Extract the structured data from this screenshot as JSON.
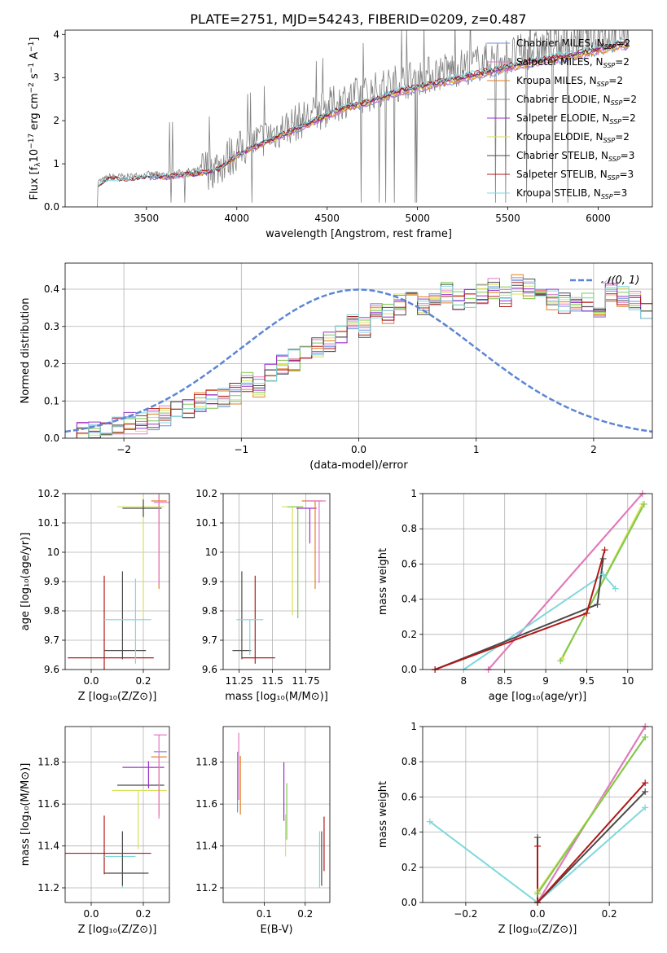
{
  "figure": {
    "title": "PLATE=2751, MJD=54243, FIBERID=0209, z=0.487"
  },
  "colors": {
    "cMILES": "#6f8fe0",
    "sMILES": "#e07ac8",
    "kMILES": "#e67e22",
    "cELODIE": "#8a8a8a",
    "sELODIE": "#9b30c8",
    "kELODIE": "#d9e05a",
    "cSTELIB": "#4a4a4a",
    "sSTELIB": "#b01818",
    "kSTELIB": "#7fd8dc",
    "green": "#7ec850",
    "gauss": "#5b85d6"
  },
  "legend_spectrum": [
    {
      "key": "cMILES",
      "label": "Chabrier MILES, N",
      "sub": "SSP",
      "tail": "=2"
    },
    {
      "key": "sMILES",
      "label": "Salpeter MILES, N",
      "sub": "SSP",
      "tail": "=2"
    },
    {
      "key": "kMILES",
      "label": "Kroupa MILES, N",
      "sub": "SSP",
      "tail": "=2"
    },
    {
      "key": "cELODIE",
      "label": "Chabrier ELODIE, N",
      "sub": "SSP",
      "tail": "=2"
    },
    {
      "key": "sELODIE",
      "label": "Salpeter ELODIE, N",
      "sub": "SSP",
      "tail": "=2"
    },
    {
      "key": "kELODIE",
      "label": "Kroupa ELODIE, N",
      "sub": "SSP",
      "tail": "=2"
    },
    {
      "key": "cSTELIB",
      "label": "Chabrier STELIB, N",
      "sub": "SSP",
      "tail": "=3"
    },
    {
      "key": "sSTELIB",
      "label": "Salpeter STELIB, N",
      "sub": "SSP",
      "tail": "=3"
    },
    {
      "key": "kSTELIB",
      "label": "Kroupa STELIB, N",
      "sub": "SSP",
      "tail": "=3"
    }
  ],
  "legend_hist": {
    "label": "𝒩(0, 1)"
  },
  "chart_data": [
    {
      "id": "spectrum",
      "type": "line",
      "xlabel": "wavelength [Angstrom, rest frame]",
      "ylabel_parts": [
        "Flux [f",
        "λ",
        "10",
        "−17",
        " erg cm",
        "−2",
        " s",
        "−1",
        " A",
        "−1",
        "]"
      ],
      "xlim": [
        3050,
        6300
      ],
      "ylim": [
        0,
        4.1
      ],
      "xticks": [
        3500,
        4000,
        4500,
        5000,
        5500,
        6000
      ],
      "yticks": [
        0,
        1,
        2,
        3,
        4
      ],
      "continuum": [
        [
          3220,
          0.55
        ],
        [
          3300,
          0.7
        ],
        [
          3400,
          0.7
        ],
        [
          3500,
          0.75
        ],
        [
          3600,
          0.75
        ],
        [
          3700,
          0.8
        ],
        [
          3800,
          0.85
        ],
        [
          3900,
          0.95
        ],
        [
          4000,
          1.3
        ],
        [
          4100,
          1.5
        ],
        [
          4200,
          1.7
        ],
        [
          4300,
          1.9
        ],
        [
          4400,
          2.1
        ],
        [
          4500,
          2.3
        ],
        [
          4600,
          2.5
        ],
        [
          4700,
          2.6
        ],
        [
          4800,
          2.75
        ],
        [
          4900,
          2.9
        ],
        [
          5000,
          3.0
        ],
        [
          5100,
          3.1
        ],
        [
          5200,
          3.2
        ],
        [
          5300,
          3.3
        ],
        [
          5400,
          3.4
        ],
        [
          5500,
          3.5
        ],
        [
          5600,
          3.6
        ],
        [
          5700,
          3.7
        ],
        [
          5800,
          3.75
        ],
        [
          5900,
          3.85
        ],
        [
          6000,
          3.95
        ],
        [
          6100,
          4.05
        ],
        [
          6170,
          4.1
        ]
      ]
    },
    {
      "id": "residual_hist",
      "type": "histogram",
      "xlabel": "(data-model)/error",
      "ylabel": "Normed distribution",
      "xlim": [
        -2.5,
        2.5
      ],
      "ylim": [
        0,
        0.47
      ],
      "xticks": [
        -2,
        -1,
        0,
        1,
        2
      ],
      "yticks": [
        0.0,
        0.1,
        0.2,
        0.3,
        0.4
      ],
      "bin_width": 0.1,
      "bin_start": -2.5,
      "base": [
        0.02,
        0.02,
        0.02,
        0.03,
        0.03,
        0.04,
        0.04,
        0.05,
        0.06,
        0.07,
        0.08,
        0.1,
        0.1,
        0.11,
        0.12,
        0.15,
        0.14,
        0.17,
        0.2,
        0.21,
        0.22,
        0.24,
        0.26,
        0.28,
        0.31,
        0.3,
        0.34,
        0.33,
        0.36,
        0.37,
        0.36,
        0.38,
        0.39,
        0.37,
        0.38,
        0.39,
        0.4,
        0.38,
        0.41,
        0.4,
        0.39,
        0.37,
        0.36,
        0.35,
        0.36,
        0.34,
        0.39,
        0.38,
        0.37,
        0.34,
        0.35,
        0.32,
        0.33,
        0.3,
        0.31,
        0.27,
        0.28,
        0.25,
        0.24,
        0.22,
        0.2,
        0.21,
        0.19,
        0.17,
        0.16,
        0.15,
        0.13,
        0.12,
        0.11,
        0.1,
        0.09,
        0.08,
        0.07,
        0.06,
        0.05,
        0.05,
        0.04,
        0.04,
        0.03,
        0.03
      ]
    },
    {
      "id": "age_vs_Z",
      "type": "errorbar",
      "xlabel": "Z [log₁₀(Z/Z⊙)]",
      "ylabel": "age  [log₁₀(age/yr)]",
      "xlim": [
        -0.1,
        0.3
      ],
      "ylim": [
        9.6,
        10.2
      ],
      "xticks": [
        0.0,
        0.2
      ],
      "yticks": [
        9.6,
        9.7,
        9.8,
        9.9,
        10.0,
        10.1,
        10.2
      ],
      "points": [
        {
          "key": "sSTELIB",
          "x": 0.05,
          "xerr": [
            0.14,
            0.19
          ],
          "y": 9.64,
          "yerr": [
            0.04,
            0.28
          ]
        },
        {
          "key": "cSTELIB",
          "x": 0.12,
          "xerr": [
            0.07,
            0.09
          ],
          "y": 9.665,
          "yerr": [
            0.03,
            0.27
          ]
        },
        {
          "key": "kSTELIB",
          "x": 0.17,
          "xerr": [
            0.12,
            0.06
          ],
          "y": 9.77,
          "yerr": [
            0.15,
            0.14
          ]
        },
        {
          "key": "kMILES",
          "x": 0.26,
          "xerr": [
            0.03,
            0.03
          ],
          "y": 10.175,
          "yerr": [
            0.3,
            0.02
          ]
        },
        {
          "key": "kELODIE",
          "x": 0.2,
          "xerr": [
            0.1,
            0.08
          ],
          "y": 10.155,
          "yerr": [
            0.38,
            0.04
          ]
        },
        {
          "key": "cSTELIB",
          "x": 0.2,
          "xerr": [
            0.08,
            0.07
          ],
          "y": 10.15,
          "yerr": [
            0.03,
            0.03
          ]
        },
        {
          "key": "sMILES",
          "x": 0.26,
          "xerr": [
            0.02,
            0.04
          ],
          "y": 10.17,
          "yerr": [
            0.28,
            0.03
          ]
        }
      ]
    },
    {
      "id": "age_vs_mass",
      "type": "errorbar",
      "xlabel": "mass [log₁₀(M/M⊙)]",
      "xlim": [
        11.13,
        11.93
      ],
      "ylim": [
        9.6,
        10.2
      ],
      "xticks": [
        11.25,
        11.5,
        11.75
      ],
      "yticks": [
        9.6,
        9.7,
        9.8,
        9.9,
        10.0,
        10.1,
        10.2
      ],
      "points": [
        {
          "key": "sSTELIB",
          "x": 11.37,
          "xerr": [
            0.1,
            0.15
          ],
          "y": 9.64,
          "yerr": [
            0.02,
            0.28
          ]
        },
        {
          "key": "cSTELIB",
          "x": 11.27,
          "xerr": [
            0.07,
            0.07
          ],
          "y": 9.665,
          "yerr": [
            0.03,
            0.27
          ]
        },
        {
          "key": "kSTELIB",
          "x": 11.33,
          "xerr": [
            0.1,
            0.1
          ],
          "y": 9.77,
          "yerr": [
            0.12,
            0.0
          ]
        },
        {
          "key": "kELODIE",
          "x": 11.65,
          "xerr": [
            0.08,
            0.08
          ],
          "y": 10.155,
          "yerr": [
            0.37,
            0.0
          ]
        },
        {
          "key": "green",
          "x": 11.69,
          "xerr": [
            0.08,
            0.04
          ],
          "y": 10.155,
          "yerr": [
            0.38,
            0.0
          ]
        },
        {
          "key": "sELODIE",
          "x": 11.78,
          "xerr": [
            0.1,
            0.05
          ],
          "y": 10.15,
          "yerr": [
            0.12,
            0.0
          ]
        },
        {
          "key": "kMILES",
          "x": 11.82,
          "xerr": [
            0.1,
            0.05
          ],
          "y": 10.175,
          "yerr": [
            0.3,
            0.0
          ]
        },
        {
          "key": "sMILES",
          "x": 11.85,
          "xerr": [
            0.1,
            0.05
          ],
          "y": 10.175,
          "yerr": [
            0.28,
            0.0
          ]
        }
      ]
    },
    {
      "id": "weight_vs_age",
      "type": "line",
      "xlabel": "age  [log₁₀(age/yr)]",
      "ylabel": "mass weight",
      "xlim": [
        7.5,
        10.3
      ],
      "ylim": [
        0,
        1.0
      ],
      "xticks": [
        8.0,
        8.5,
        9.0,
        9.5,
        10.0
      ],
      "yticks": [
        0.0,
        0.2,
        0.4,
        0.6,
        0.8,
        1.0
      ],
      "series": [
        {
          "key": "kMILES",
          "x": [
            8.3,
            10.18
          ],
          "y": [
            0.0,
            1.0
          ]
        },
        {
          "key": "sMILES",
          "x": [
            8.3,
            10.18
          ],
          "y": [
            0.0,
            1.0
          ]
        },
        {
          "key": "kELODIE",
          "x": [
            9.2,
            10.18
          ],
          "y": [
            0.06,
            0.94
          ]
        },
        {
          "key": "green",
          "x": [
            9.18,
            10.2
          ],
          "y": [
            0.05,
            0.94
          ]
        },
        {
          "key": "kSTELIB",
          "x": [
            8.0,
            9.7,
            9.85
          ],
          "y": [
            0.0,
            0.54,
            0.46
          ]
        },
        {
          "key": "cSTELIB",
          "x": [
            7.65,
            9.63,
            9.7
          ],
          "y": [
            0.0,
            0.37,
            0.63
          ]
        },
        {
          "key": "sSTELIB",
          "x": [
            7.65,
            9.5,
            9.72
          ],
          "y": [
            0.0,
            0.32,
            0.68
          ]
        }
      ]
    },
    {
      "id": "mass_vs_Z",
      "type": "errorbar",
      "xlabel": "Z [log₁₀(Z/Z⊙)]",
      "ylabel": "mass [log₁₀(M/M⊙)]",
      "xlim": [
        -0.1,
        0.3
      ],
      "ylim": [
        11.13,
        11.97
      ],
      "xticks": [
        0.0,
        0.2
      ],
      "yticks": [
        11.2,
        11.4,
        11.6,
        11.8
      ],
      "points": [
        {
          "key": "sSTELIB",
          "x": 0.05,
          "xerr": [
            0.15,
            0.18
          ],
          "y": 11.365,
          "yerr": [
            0.1,
            0.18
          ]
        },
        {
          "key": "kSTELIB",
          "x": 0.12,
          "xerr": [
            0.07,
            0.05
          ],
          "y": 11.35,
          "yerr": [
            0.15,
            0.12
          ]
        },
        {
          "key": "cSTELIB",
          "x": 0.12,
          "xerr": [
            0.07,
            0.1
          ],
          "y": 11.27,
          "yerr": [
            0.06,
            0.2
          ]
        },
        {
          "key": "kELODIE",
          "x": 0.18,
          "xerr": [
            0.1,
            0.11
          ],
          "y": 11.665,
          "yerr": [
            0.28,
            0.0
          ]
        },
        {
          "key": "cSTELIB",
          "x": 0.2,
          "xerr": [
            0.1,
            0.08
          ],
          "y": 11.69,
          "yerr": [
            0.0,
            0.0
          ]
        },
        {
          "key": "sELODIE",
          "x": 0.22,
          "xerr": [
            0.1,
            0.06
          ],
          "y": 11.775,
          "yerr": [
            0.1,
            0.03
          ]
        },
        {
          "key": "kMILES",
          "x": 0.26,
          "xerr": [
            0.03,
            0.03
          ],
          "y": 11.825,
          "yerr": [
            0.28,
            0.0
          ]
        },
        {
          "key": "cMILES",
          "x": 0.26,
          "xerr": [
            0.02,
            0.03
          ],
          "y": 11.85,
          "yerr": [
            0.0,
            0.0
          ]
        },
        {
          "key": "sMILES",
          "x": 0.26,
          "xerr": [
            0.02,
            0.03
          ],
          "y": 11.93,
          "yerr": [
            0.4,
            0.0
          ]
        }
      ]
    },
    {
      "id": "mass_vs_ebv",
      "type": "errorbar",
      "xlabel": "E(B-V)",
      "xlim": [
        0.0,
        0.26
      ],
      "ylim": [
        11.13,
        11.97
      ],
      "xticks": [
        0.1,
        0.2
      ],
      "yticks": [
        11.2,
        11.4,
        11.6,
        11.8
      ],
      "points": [
        {
          "key": "cMILES",
          "x": 0.035,
          "xerr": [
            0,
            0
          ],
          "y": 11.75,
          "yerr": [
            0.19,
            0.1
          ]
        },
        {
          "key": "sMILES",
          "x": 0.038,
          "xerr": [
            0,
            0
          ],
          "y": 11.8,
          "yerr": [
            0.18,
            0.14
          ]
        },
        {
          "key": "kMILES",
          "x": 0.042,
          "xerr": [
            0,
            0
          ],
          "y": 11.7,
          "yerr": [
            0.15,
            0.13
          ]
        },
        {
          "key": "sELODIE",
          "x": 0.148,
          "xerr": [
            0,
            0
          ],
          "y": 11.67,
          "yerr": [
            0.15,
            0.13
          ]
        },
        {
          "key": "kELODIE",
          "x": 0.152,
          "xerr": [
            0,
            0
          ],
          "y": 11.55,
          "yerr": [
            0.2,
            0.0
          ]
        },
        {
          "key": "green",
          "x": 0.155,
          "xerr": [
            0,
            0
          ],
          "y": 11.55,
          "yerr": [
            0.12,
            0.15
          ]
        },
        {
          "key": "kSTELIB",
          "x": 0.235,
          "xerr": [
            0,
            0
          ],
          "y": 11.35,
          "yerr": [
            0.15,
            0.12
          ]
        },
        {
          "key": "cSTELIB",
          "x": 0.24,
          "xerr": [
            0,
            0
          ],
          "y": 11.27,
          "yerr": [
            0.06,
            0.2
          ]
        },
        {
          "key": "sSTELIB",
          "x": 0.246,
          "xerr": [
            0,
            0
          ],
          "y": 11.42,
          "yerr": [
            0.14,
            0.12
          ]
        }
      ]
    },
    {
      "id": "weight_vs_Z",
      "type": "line",
      "xlabel": "Z [log₁₀(Z/Z⊙)]",
      "ylabel": "mass weight",
      "xlim": [
        -0.32,
        0.32
      ],
      "ylim": [
        0,
        1.0
      ],
      "xticks": [
        -0.2,
        0.0,
        0.2
      ],
      "yticks": [
        0.0,
        0.2,
        0.4,
        0.6,
        0.8,
        1.0
      ],
      "series": [
        {
          "key": "kSTELIB",
          "x": [
            -0.3,
            0.0,
            0.3
          ],
          "y": [
            0.46,
            0.0,
            0.54
          ]
        },
        {
          "key": "kMILES",
          "x": [
            0.0,
            0.3
          ],
          "y": [
            0.0,
            1.0
          ]
        },
        {
          "key": "sMILES",
          "x": [
            0.0,
            0.3
          ],
          "y": [
            0.0,
            1.0
          ]
        },
        {
          "key": "kELODIE",
          "x": [
            0.0,
            0.3
          ],
          "y": [
            0.06,
            0.94
          ]
        },
        {
          "key": "green",
          "x": [
            0.0,
            0.3
          ],
          "y": [
            0.05,
            0.94
          ]
        },
        {
          "key": "cSTELIB",
          "x": [
            0.0,
            0.0,
            0.3
          ],
          "y": [
            0.37,
            0.0,
            0.63
          ]
        },
        {
          "key": "sSTELIB",
          "x": [
            0.0,
            0.0,
            0.3
          ],
          "y": [
            0.32,
            0.0,
            0.68
          ]
        }
      ]
    }
  ]
}
